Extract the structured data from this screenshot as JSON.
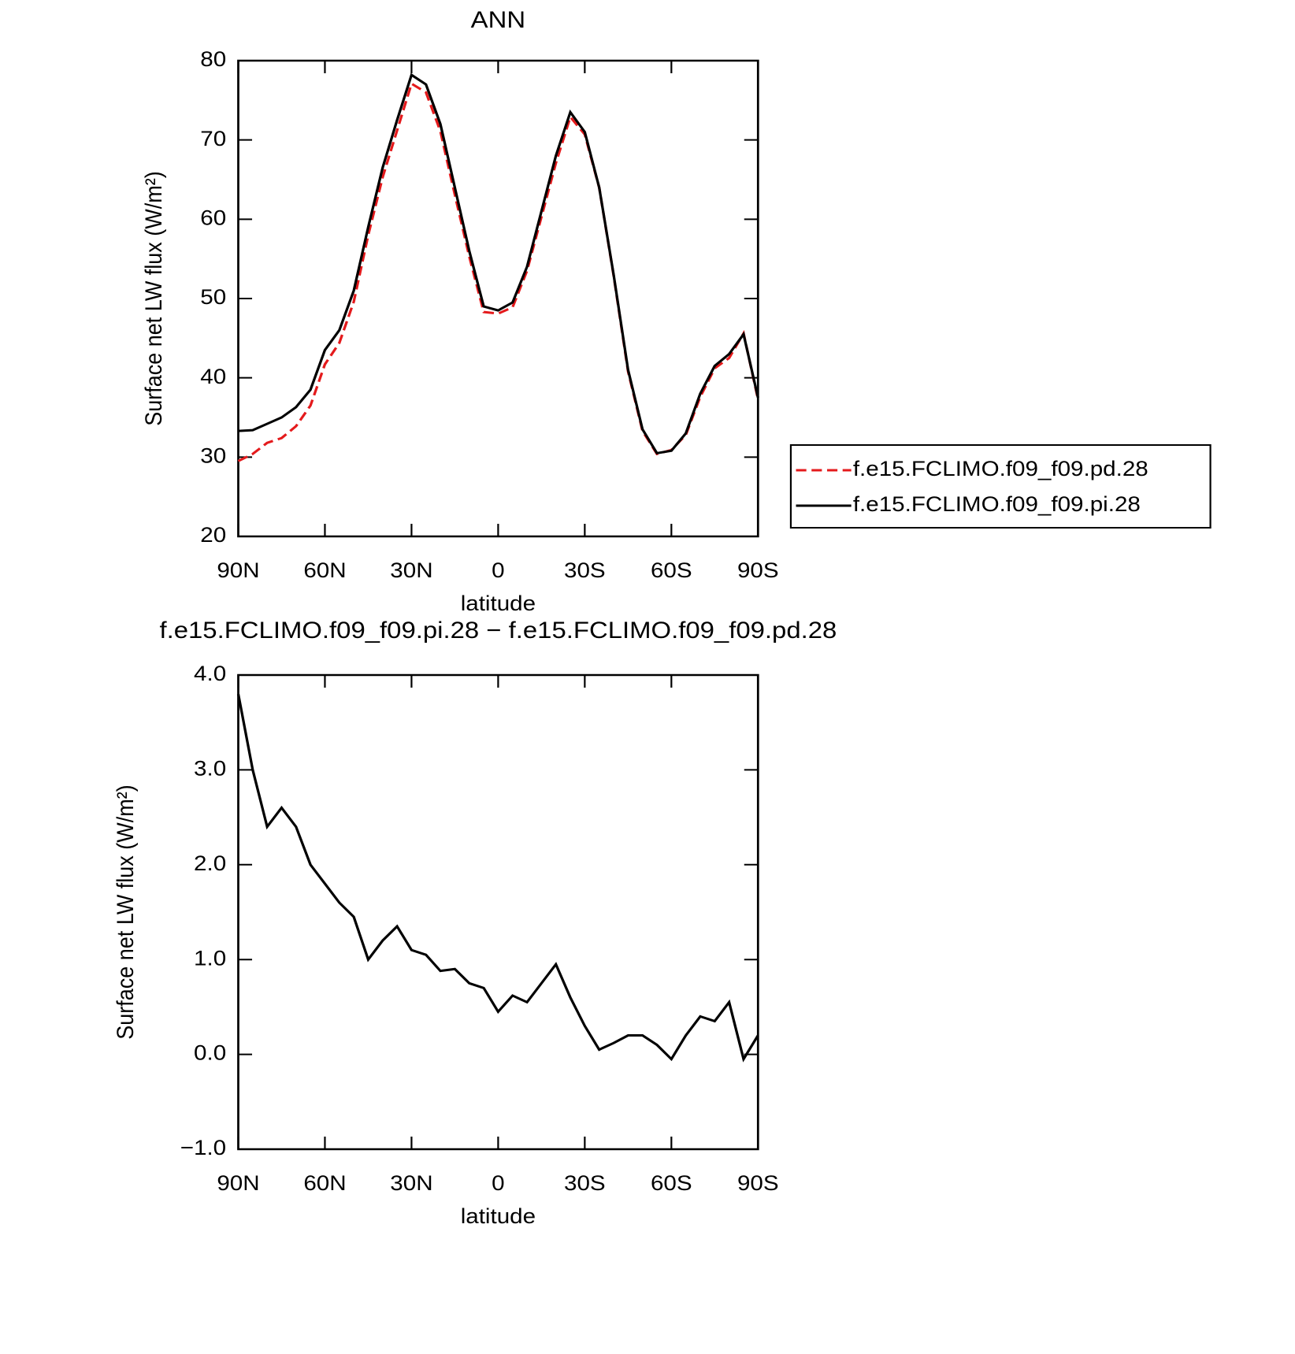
{
  "chart_data": [
    {
      "type": "line",
      "title": "ANN",
      "xlabel": "latitude",
      "ylabel": "Surface net LW flux (W/m²)",
      "x": [
        90,
        85,
        80,
        75,
        70,
        65,
        60,
        55,
        50,
        45,
        40,
        35,
        30,
        25,
        20,
        15,
        10,
        5,
        0,
        -5,
        -10,
        -15,
        -20,
        -25,
        -30,
        -35,
        -40,
        -45,
        -50,
        -55,
        -60,
        -65,
        -70,
        -75,
        -80,
        -85,
        -90
      ],
      "xlim": [
        90,
        -90
      ],
      "xticks": [
        {
          "value": 90,
          "label": "90N"
        },
        {
          "value": 60,
          "label": "60N"
        },
        {
          "value": 30,
          "label": "30N"
        },
        0,
        {
          "value": -30,
          "label": "30S"
        },
        {
          "value": -60,
          "label": "60S"
        },
        {
          "value": -90,
          "label": "90S"
        }
      ],
      "ylim": [
        20,
        80
      ],
      "yticks": [
        20,
        30,
        40,
        50,
        60,
        70,
        80
      ],
      "legend": "right",
      "series": [
        {
          "name": "f.e15.FCLIMO.f09_f09.pd.28",
          "color": "#e41a1c",
          "linestyle": "dashed",
          "values": [
            29.5,
            30.4,
            31.8,
            32.4,
            33.9,
            36.5,
            41.7,
            44.4,
            49.6,
            58,
            65.3,
            71.2,
            77.1,
            76,
            71.1,
            63.1,
            55.3,
            48.3,
            48.1,
            48.9,
            53.5,
            60.3,
            67.1,
            72.9,
            70.7,
            64,
            52.9,
            40.8,
            33.3,
            30.4,
            30.9,
            32.8,
            37.6,
            41.2,
            42.5,
            45.6,
            37.3
          ]
        },
        {
          "name": "f.e15.FCLIMO.f09_f09.pi.28",
          "color": "#000000",
          "linestyle": "solid",
          "values": [
            33.3,
            33.4,
            34.2,
            35,
            36.3,
            38.5,
            43.5,
            46,
            51,
            59,
            66.5,
            72.5,
            78.2,
            77,
            72,
            64,
            56,
            49,
            48.5,
            49.5,
            54,
            61,
            68,
            73.5,
            71,
            64,
            53,
            41,
            33.5,
            30.5,
            30.8,
            33,
            38,
            41.5,
            43,
            45.5,
            37.5
          ]
        }
      ]
    },
    {
      "type": "line",
      "title": "f.e15.FCLIMO.f09_f09.pi.28 − f.e15.FCLIMO.f09_f09.pd.28",
      "xlabel": "latitude",
      "ylabel": "Surface net LW flux (W/m²)",
      "x": [
        90,
        85,
        80,
        75,
        70,
        65,
        60,
        55,
        50,
        45,
        40,
        35,
        30,
        25,
        20,
        15,
        10,
        5,
        0,
        -5,
        -10,
        -15,
        -20,
        -25,
        -30,
        -35,
        -40,
        -45,
        -50,
        -55,
        -60,
        -65,
        -70,
        -75,
        -80,
        -85,
        -90
      ],
      "xlim": [
        90,
        -90
      ],
      "xticks": [
        {
          "value": 90,
          "label": "90N"
        },
        {
          "value": 60,
          "label": "60N"
        },
        {
          "value": 30,
          "label": "30N"
        },
        0,
        {
          "value": -30,
          "label": "30S"
        },
        {
          "value": -60,
          "label": "60S"
        },
        {
          "value": -90,
          "label": "90S"
        }
      ],
      "ylim": [
        -1,
        4
      ],
      "yticks": [
        {
          "value": -1,
          "label": "−1.0"
        },
        {
          "value": 0,
          "label": "0.0"
        },
        {
          "value": 1,
          "label": "1.0"
        },
        {
          "value": 2,
          "label": "2.0"
        },
        {
          "value": 3,
          "label": "3.0"
        },
        {
          "value": 4,
          "label": "4.0"
        }
      ],
      "series": [
        {
          "color": "#000000",
          "linestyle": "solid",
          "values": [
            3.8,
            3.0,
            2.4,
            2.6,
            2.4,
            2.0,
            1.8,
            1.6,
            1.45,
            1.0,
            1.2,
            1.35,
            1.1,
            1.05,
            0.88,
            0.9,
            0.75,
            0.7,
            0.45,
            0.62,
            0.55,
            0.75,
            0.95,
            0.6,
            0.3,
            0.05,
            0.12,
            0.2,
            0.2,
            0.1,
            -0.05,
            0.2,
            0.4,
            0.35,
            0.55,
            -0.05,
            0.2
          ]
        }
      ]
    }
  ]
}
